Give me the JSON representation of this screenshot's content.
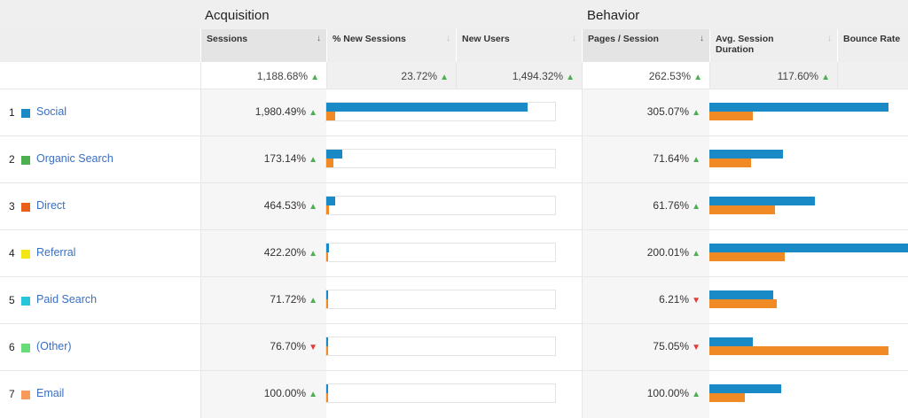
{
  "groups": {
    "acquisition": "Acquisition",
    "behavior": "Behavior"
  },
  "columns": {
    "sessions": "Sessions",
    "new_sessions": "% New Sessions",
    "new_users": "New Users",
    "pages_session": "Pages / Session",
    "avg_duration": "Avg. Session Duration",
    "bounce_rate": "Bounce Rate"
  },
  "sort_icon": "arrow-down-icon",
  "totals": {
    "sessions": "1,188.68%",
    "new_sessions": "23.72%",
    "new_users": "1,494.32%",
    "pages_session": "262.53%",
    "avg_duration": "117.60%"
  },
  "colors": {
    "bar_current": "#1a8ac6",
    "bar_previous": "#f08a24",
    "up": "#4caf50",
    "down": "#e53935"
  },
  "rows": [
    {
      "rank": "1",
      "label": "Social",
      "swatch": "#1a8ac6",
      "sessions": "1,980.49%",
      "sessions_dir": "up",
      "pages": "305.07%",
      "pages_dir": "up",
      "acq_bars": [
        0.88,
        0.04
      ],
      "beh_bars": [
        0.9,
        0.22
      ]
    },
    {
      "rank": "2",
      "label": "Organic Search",
      "swatch": "#4caf50",
      "sessions": "173.14%",
      "sessions_dir": "up",
      "pages": "71.64%",
      "pages_dir": "up",
      "acq_bars": [
        0.07,
        0.03
      ],
      "beh_bars": [
        0.37,
        0.21
      ]
    },
    {
      "rank": "3",
      "label": "Direct",
      "swatch": "#e8601c",
      "sessions": "464.53%",
      "sessions_dir": "up",
      "pages": "61.76%",
      "pages_dir": "up",
      "acq_bars": [
        0.04,
        0.01
      ],
      "beh_bars": [
        0.53,
        0.33
      ]
    },
    {
      "rank": "4",
      "label": "Referral",
      "swatch": "#f2e614",
      "sessions": "422.20%",
      "sessions_dir": "up",
      "pages": "200.01%",
      "pages_dir": "up",
      "acq_bars": [
        0.012,
        0.008
      ],
      "beh_bars": [
        1.0,
        0.38
      ]
    },
    {
      "rank": "5",
      "label": "Paid Search",
      "swatch": "#26c6da",
      "sessions": "71.72%",
      "sessions_dir": "up",
      "pages": "6.21%",
      "pages_dir": "down",
      "acq_bars": [
        0.006,
        0.006
      ],
      "beh_bars": [
        0.32,
        0.34
      ]
    },
    {
      "rank": "6",
      "label": "(Other)",
      "swatch": "#66dd77",
      "sessions": "76.70%",
      "sessions_dir": "down",
      "pages": "75.05%",
      "pages_dir": "down",
      "acq_bars": [
        0.006,
        0.006
      ],
      "beh_bars": [
        0.22,
        0.9
      ]
    },
    {
      "rank": "7",
      "label": "Email",
      "swatch": "#f79a5a",
      "sessions": "100.00%",
      "sessions_dir": "up",
      "pages": "100.00%",
      "pages_dir": "up",
      "acq_bars": [
        0.006,
        0.006
      ],
      "beh_bars": [
        0.36,
        0.18
      ]
    }
  ]
}
